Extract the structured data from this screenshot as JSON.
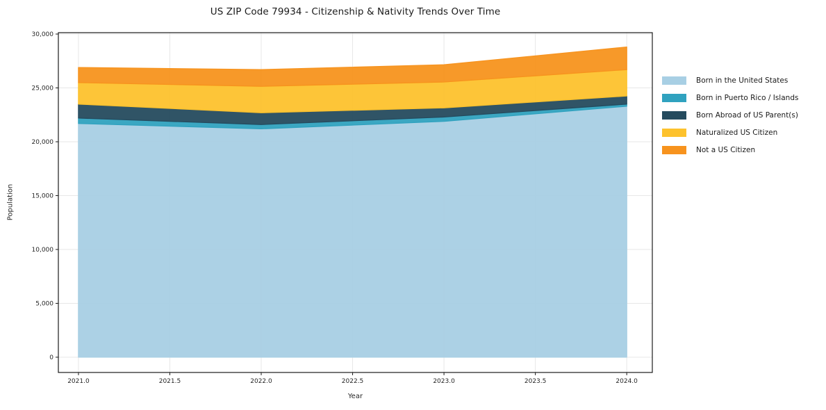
{
  "chart_data": {
    "type": "area",
    "stacked": true,
    "title": "US ZIP Code 79934 - Citizenship & Nativity Trends Over Time",
    "xlabel": "Year",
    "ylabel": "Population",
    "x": [
      2021,
      2022,
      2023,
      2024
    ],
    "series": [
      {
        "name": "Born in the United States",
        "color": "#a8cfe4",
        "values": [
          21700,
          21200,
          21900,
          23300
        ]
      },
      {
        "name": "Born in Puerto Rico / Islands",
        "color": "#30a2bf",
        "values": [
          500,
          400,
          400,
          200
        ]
      },
      {
        "name": "Born Abroad of US Parent(s)",
        "color": "#254b5e",
        "values": [
          1300,
          1100,
          850,
          750
        ]
      },
      {
        "name": "Naturalized US Citizen",
        "color": "#fdc22d",
        "values": [
          2000,
          2450,
          2400,
          2450
        ]
      },
      {
        "name": "Not a US Citizen",
        "color": "#f7931e",
        "values": [
          1400,
          1550,
          1600,
          2100
        ]
      }
    ],
    "stack_totals": [
      26900,
      26700,
      27150,
      28800
    ],
    "xticks": {
      "values": [
        2021.0,
        2021.5,
        2022.0,
        2022.5,
        2023.0,
        2023.5,
        2024.0
      ],
      "labels": [
        "2021.0",
        "2021.5",
        "2022.0",
        "2022.5",
        "2023.0",
        "2023.5",
        "2024.0"
      ]
    },
    "yticks": {
      "values": [
        0,
        5000,
        10000,
        15000,
        20000,
        25000,
        30000
      ],
      "labels": [
        "0",
        "5,000",
        "10,000",
        "15,000",
        "20,000",
        "25,000",
        "30,000"
      ]
    },
    "xlim": [
      2020.89,
      2024.14
    ],
    "ylim": [
      -1420,
      30130
    ],
    "grid": true,
    "legend_position": "right",
    "colors": {
      "grid": "#e7e7e7",
      "spine": "#1a1a1a",
      "tick_label": "#262626",
      "background": "#ffffff"
    }
  }
}
